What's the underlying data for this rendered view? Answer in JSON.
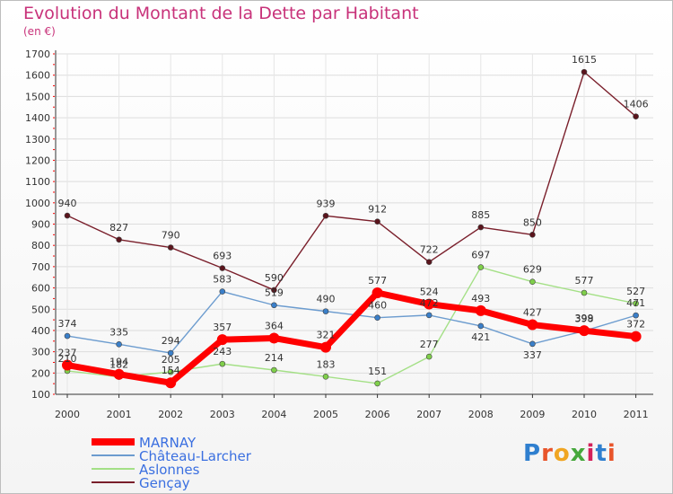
{
  "header": {
    "title": "Evolution du Montant de la Dette par Habitant",
    "subtitle": "(en €)"
  },
  "logo": {
    "text": "Proxiti",
    "letter_colors": [
      "#2f7fcf",
      "#e8542a",
      "#f0a522",
      "#46a83c",
      "#d3205a",
      "#2f7fcf",
      "#e8542a"
    ]
  },
  "chart_data": {
    "type": "line",
    "title": "Evolution du Montant de la Dette par Habitant",
    "subtitle": "(en €)",
    "xlabel": "",
    "ylabel": "",
    "x": [
      "2000",
      "2001",
      "2002",
      "2003",
      "2004",
      "2005",
      "2006",
      "2007",
      "2008",
      "2009",
      "2010",
      "2011"
    ],
    "ylim": [
      100,
      1700
    ],
    "yticks": [
      100,
      200,
      300,
      400,
      500,
      600,
      700,
      800,
      900,
      1000,
      1100,
      1200,
      1300,
      1400,
      1500,
      1600,
      1700
    ],
    "grid": true,
    "legend_position": "bottom-left",
    "series": [
      {
        "name": "Gençay",
        "color": "#7a1f2b",
        "marker": "#5a141c",
        "values": [
          940,
          827,
          790,
          693,
          590,
          939,
          912,
          722,
          885,
          850,
          1615,
          1406
        ]
      },
      {
        "name": "Aslonnes",
        "color": "#a4e086",
        "marker": "#7fcf4a",
        "values": [
          210,
          182,
          205,
          243,
          214,
          183,
          151,
          277,
          697,
          629,
          577,
          527
        ]
      },
      {
        "name": "Château-Larcher",
        "color": "#6c9ccf",
        "marker": "#3a7fc9",
        "values": [
          374,
          335,
          294,
          583,
          519,
          490,
          460,
          472,
          421,
          337,
          398,
          471
        ]
      },
      {
        "name": "MARNAY",
        "color": "#ff0000",
        "marker": "#ff0000",
        "values": [
          237,
          194,
          154,
          357,
          364,
          321,
          577,
          524,
          493,
          427,
          399,
          372
        ]
      }
    ],
    "legend": [
      {
        "name": "MARNAY",
        "color": "#ff0000",
        "label_color": "#3a6fe0"
      },
      {
        "name": "Château-Larcher",
        "color": "#6c9ccf",
        "label_color": "#3a6fe0"
      },
      {
        "name": "Aslonnes",
        "color": "#a4e086",
        "label_color": "#3a6fe0"
      },
      {
        "name": "Gençay",
        "color": "#7a1f2b",
        "label_color": "#3a6fe0"
      }
    ]
  }
}
